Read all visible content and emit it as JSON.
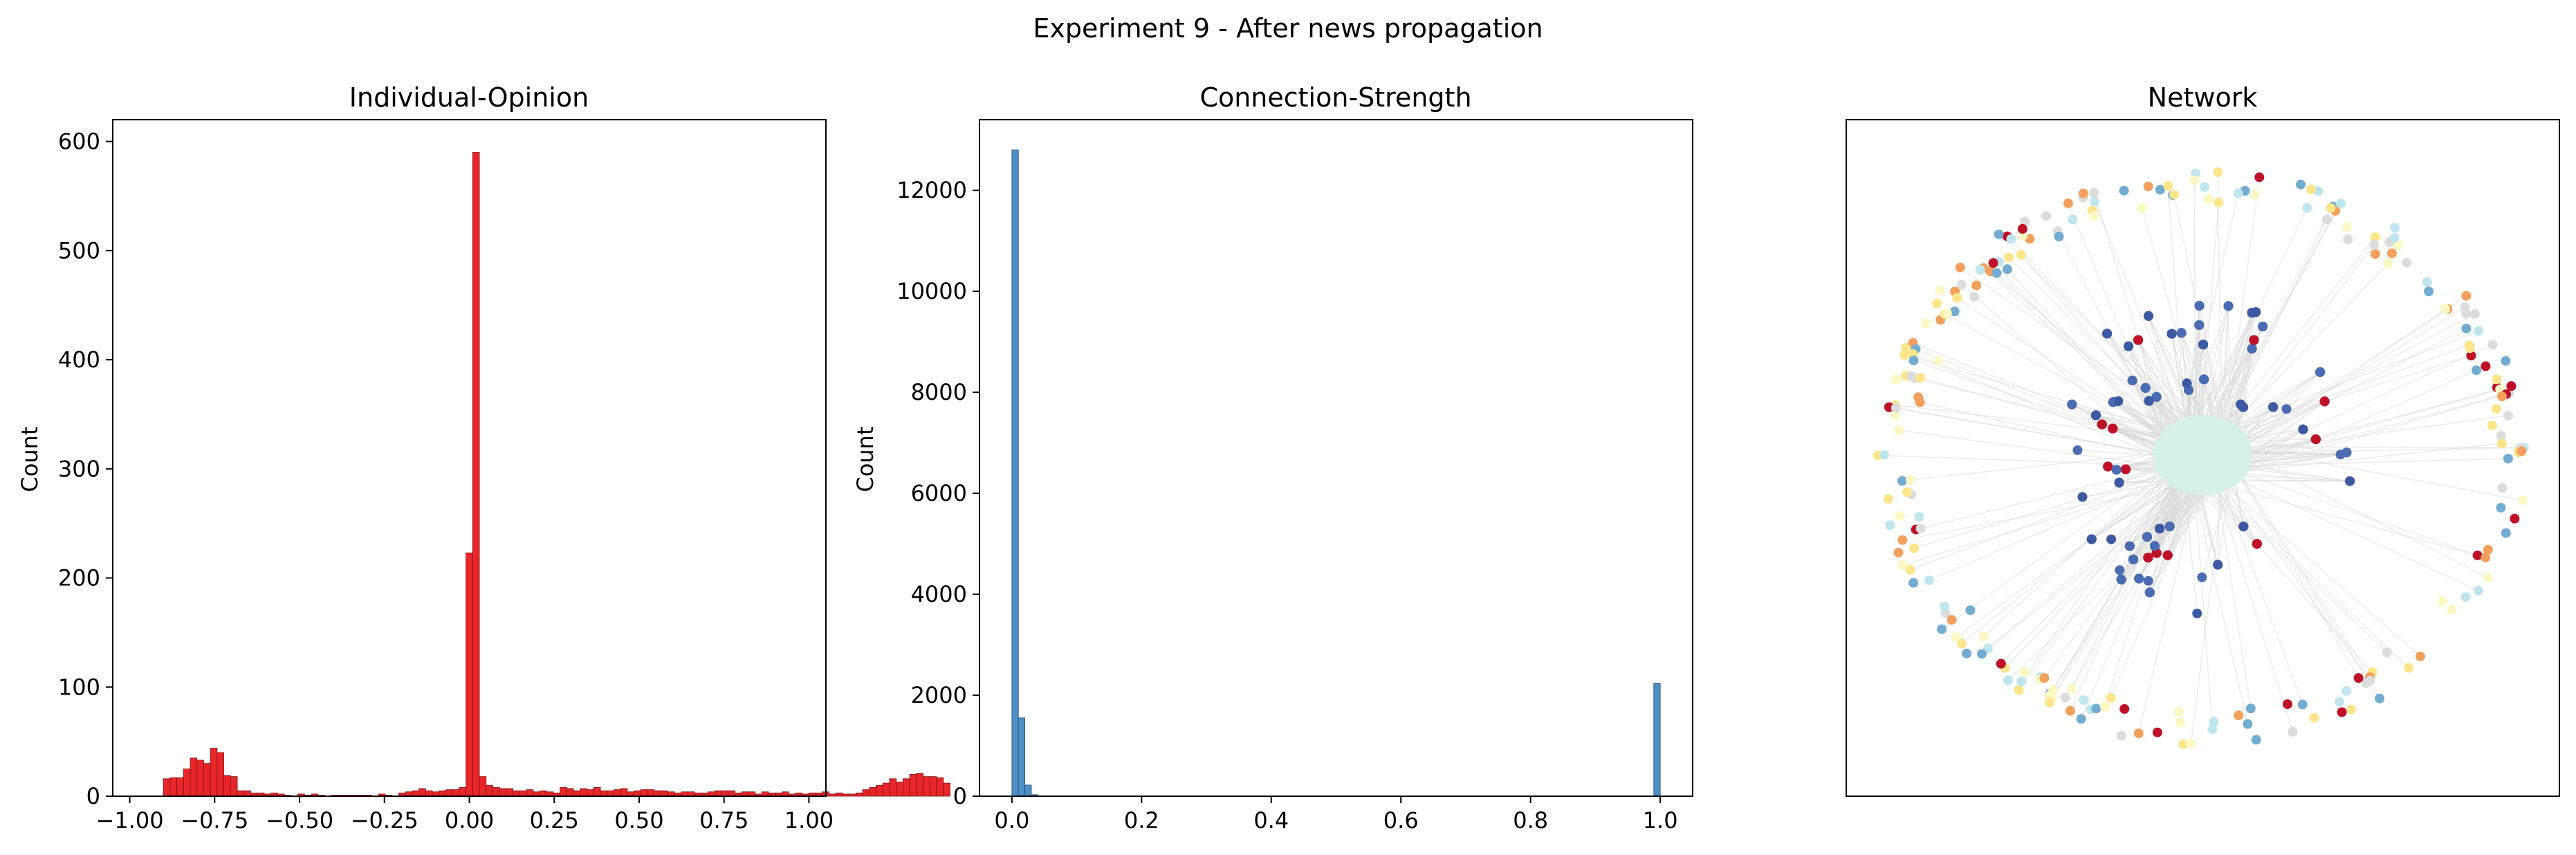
{
  "figure": {
    "title": "Experiment 9 - After news propagation"
  },
  "chart_data": [
    {
      "type": "bar",
      "title": "Individual-Opinion",
      "xlabel": "",
      "ylabel": "Count",
      "xlim": [
        -1.05,
        1.05
      ],
      "ylim": [
        0,
        620
      ],
      "xticks": [
        -1.0,
        -0.75,
        -0.5,
        -0.25,
        0.0,
        0.25,
        0.5,
        0.75,
        1.0
      ],
      "xtick_labels": [
        "−1.00",
        "−0.75",
        "−0.50",
        "−0.25",
        "0.00",
        "0.25",
        "0.50",
        "0.75",
        "1.00"
      ],
      "yticks": [
        0,
        100,
        200,
        300,
        400,
        500,
        600
      ],
      "ytick_labels": [
        "0",
        "100",
        "200",
        "300",
        "400",
        "500",
        "600"
      ],
      "bin_start": -1.0,
      "bin_width": 0.0198,
      "values": [
        0,
        0,
        0,
        0,
        0,
        16,
        17,
        17,
        25,
        35,
        33,
        30,
        44,
        40,
        19,
        18,
        5,
        5,
        3,
        3,
        2,
        3,
        2,
        1,
        0,
        2,
        1,
        2,
        1,
        0,
        1,
        1,
        1,
        1,
        1,
        1,
        0,
        2,
        1,
        0,
        3,
        4,
        5,
        7,
        5,
        4,
        5,
        6,
        6,
        8,
        223,
        590,
        18,
        10,
        8,
        7,
        7,
        5,
        5,
        6,
        4,
        5,
        4,
        3,
        8,
        7,
        5,
        7,
        6,
        8,
        5,
        5,
        6,
        7,
        4,
        5,
        6,
        6,
        5,
        5,
        4,
        3,
        4,
        4,
        3,
        3,
        4,
        5,
        5,
        5,
        3,
        4,
        4,
        2,
        4,
        3,
        3,
        4,
        2,
        3,
        2,
        3,
        3,
        4,
        2,
        3,
        2,
        2,
        3,
        6,
        8,
        10,
        12,
        16,
        13,
        16,
        20,
        21,
        18,
        18,
        17,
        12,
        0
      ],
      "color": "#e8262a",
      "edge_color": "#7a1414",
      "grid": false
    },
    {
      "type": "bar",
      "title": "Connection-Strength",
      "xlabel": "",
      "ylabel": "Count",
      "xlim": [
        -0.05,
        1.05
      ],
      "ylim": [
        0,
        13400
      ],
      "xticks": [
        0.0,
        0.2,
        0.4,
        0.6,
        0.8,
        1.0
      ],
      "xtick_labels": [
        "0.0",
        "0.2",
        "0.4",
        "0.6",
        "0.8",
        "1.0"
      ],
      "yticks": [
        0,
        2000,
        4000,
        6000,
        8000,
        10000,
        12000
      ],
      "ytick_labels": [
        "0",
        "2000",
        "4000",
        "6000",
        "8000",
        "10000",
        "12000"
      ],
      "bins": [
        {
          "x": 0.0,
          "value": 12800
        },
        {
          "x": 0.01,
          "value": 1550
        },
        {
          "x": 0.02,
          "value": 220
        },
        {
          "x": 0.03,
          "value": 30
        },
        {
          "x": 0.99,
          "value": 2240
        }
      ],
      "bin_width": 0.01,
      "color": "#4e8fc8",
      "edge_color": "#274a6b",
      "grid": false
    },
    {
      "type": "scatter",
      "title": "Network",
      "axes": "none",
      "node_colors": [
        "#3c59a4",
        "#c01027",
        "#f3a05c",
        "#fce58b",
        "#fbf8c4",
        "#bfe6ef",
        "#72acd3",
        "#dcdcdc"
      ],
      "core_color": "#d6f1e8",
      "edge_color": "#d9d9d9"
    }
  ]
}
